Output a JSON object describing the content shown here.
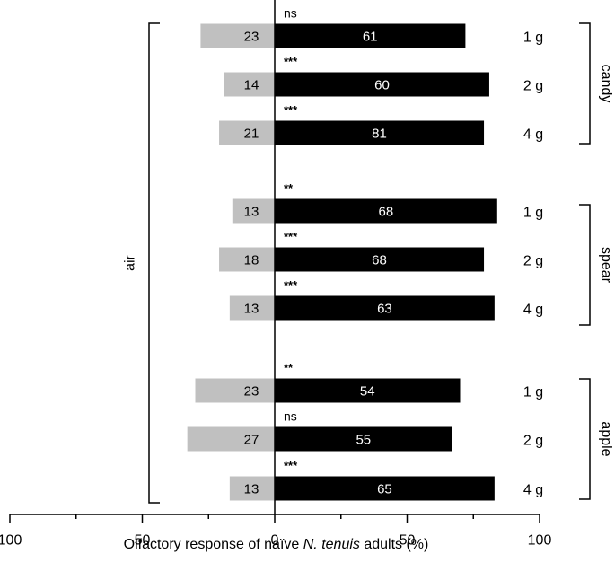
{
  "chart_data": {
    "type": "bar",
    "orientation": "horizontal-diverging",
    "xlabel_prefix": "Olfactory response of naïve ",
    "xlabel_species": "N. tenuis",
    "xlabel_suffix": " adults (%)",
    "xlim": [
      -100,
      100
    ],
    "x_ticks": [
      -100,
      -50,
      0,
      50,
      100
    ],
    "x_tick_labels": [
      "100",
      "50",
      "0",
      "50",
      "100"
    ],
    "left_group_label": "air",
    "colors": {
      "left": "#c0c0c0",
      "right": "#000000"
    },
    "groups": [
      {
        "name": "candy",
        "rows": [
          {
            "dose": "1 g",
            "left_value": 28,
            "left_label": "23",
            "right_value": 72,
            "right_label": "61",
            "sig": "ns"
          },
          {
            "dose": "2 g",
            "left_value": 19,
            "left_label": "14",
            "right_value": 81,
            "right_label": "60",
            "sig": "***"
          },
          {
            "dose": "4 g",
            "left_value": 21,
            "left_label": "21",
            "right_value": 79,
            "right_label": "81",
            "sig": "***"
          }
        ]
      },
      {
        "name": "spear",
        "rows": [
          {
            "dose": "1 g",
            "left_value": 16,
            "left_label": "13",
            "right_value": 84,
            "right_label": "68",
            "sig": "**"
          },
          {
            "dose": "2 g",
            "left_value": 21,
            "left_label": "18",
            "right_value": 79,
            "right_label": "68",
            "sig": "***"
          },
          {
            "dose": "4 g",
            "left_value": 17,
            "left_label": "13",
            "right_value": 83,
            "right_label": "63",
            "sig": "***"
          }
        ]
      },
      {
        "name": "apple",
        "rows": [
          {
            "dose": "1 g",
            "left_value": 30,
            "left_label": "23",
            "right_value": 70,
            "right_label": "54",
            "sig": "**"
          },
          {
            "dose": "2 g",
            "left_value": 33,
            "left_label": "27",
            "right_value": 67,
            "right_label": "55",
            "sig": "ns"
          },
          {
            "dose": "4 g",
            "left_value": 17,
            "left_label": "13",
            "right_value": 83,
            "right_label": "65",
            "sig": "***"
          }
        ]
      }
    ]
  }
}
